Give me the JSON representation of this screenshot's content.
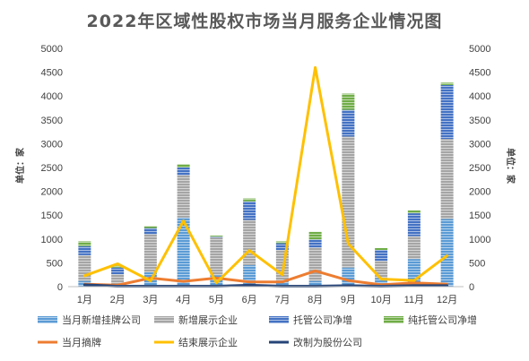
{
  "chart_data": {
    "type": "bar",
    "title": "2022年区域性股权市场当月服务企业情况图",
    "categories": [
      "1月",
      "2月",
      "3月",
      "4月",
      "5月",
      "6月",
      "7月",
      "8月",
      "9月",
      "10月",
      "11月",
      "12月"
    ],
    "left_axis": {
      "label": "单位：家",
      "ylim": [
        0,
        5000
      ],
      "ticks": [
        0,
        500,
        1000,
        1500,
        2000,
        2500,
        3000,
        3500,
        4000,
        4500,
        5000
      ]
    },
    "right_axis": {
      "label": "单位：家",
      "ylim": [
        0,
        5000
      ],
      "ticks": [
        0,
        500,
        1000,
        1500,
        2000,
        2500,
        3000,
        3500,
        4000,
        4500,
        5000
      ]
    },
    "grid": false,
    "legend_position": "bottom",
    "bar_series": [
      {
        "name": "当月新增挂牌公司",
        "color": "#5b9bd5",
        "values": [
          120,
          40,
          300,
          1450,
          240,
          450,
          120,
          120,
          400,
          180,
          580,
          1420
        ]
      },
      {
        "name": "新增展示企业",
        "color": "#a5a5a5",
        "values": [
          540,
          220,
          800,
          890,
          790,
          950,
          650,
          700,
          2750,
          360,
          480,
          1680
        ]
      },
      {
        "name": "托管公司净增",
        "color": "#4472c4",
        "values": [
          190,
          140,
          130,
          160,
          20,
          390,
          140,
          170,
          560,
          230,
          480,
          1130
        ]
      },
      {
        "name": "纯托管公司净增",
        "color": "#70ad47",
        "values": [
          100,
          40,
          40,
          70,
          20,
          60,
          40,
          160,
          340,
          40,
          60,
          50
        ]
      }
    ],
    "line_series": [
      {
        "name": "当月摘牌",
        "color": "#ed7d31",
        "axis": "left",
        "values": [
          50,
          30,
          180,
          110,
          180,
          100,
          100,
          330,
          130,
          40,
          80,
          50
        ]
      },
      {
        "name": "结束展示企业",
        "color": "#ffc000",
        "axis": "right",
        "values": [
          230,
          480,
          120,
          1380,
          80,
          760,
          250,
          4600,
          900,
          160,
          130,
          650
        ]
      },
      {
        "name": "改制为股份公司",
        "color": "#264478",
        "axis": "left",
        "values": [
          40,
          10,
          10,
          10,
          10,
          30,
          10,
          10,
          20,
          10,
          20,
          20
        ]
      }
    ]
  }
}
